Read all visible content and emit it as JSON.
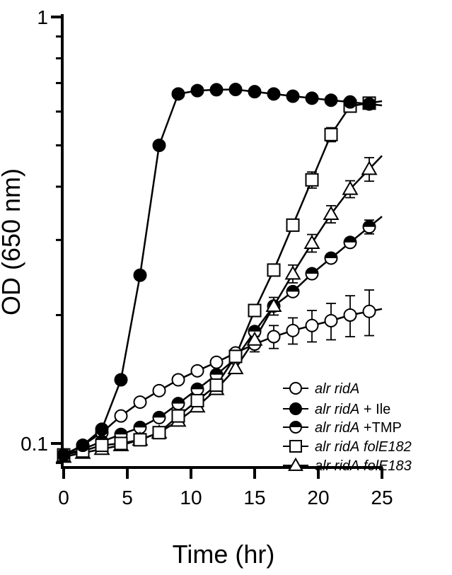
{
  "chart_data": {
    "type": "line",
    "xlabel": "Time (hr)",
    "ylabel": "OD (650 nm)",
    "xlim": [
      0,
      25
    ],
    "ylim": [
      0.08,
      1
    ],
    "y_scale": "log",
    "x_ticks": [
      0,
      5,
      10,
      15,
      20,
      25
    ],
    "x_tick_labels": [
      "0",
      "5",
      "10",
      "15",
      "20",
      "25"
    ],
    "y_ticks": [
      0.1,
      1
    ],
    "y_tick_labels": [
      "0.1",
      "1"
    ],
    "grid": false,
    "legend_position": "bottom-right",
    "series": [
      {
        "name_parts": [
          {
            "text": "alr ridA",
            "italic": true
          }
        ],
        "marker": "circle-open",
        "color": "#000000",
        "x": [
          0,
          1.5,
          3,
          4.5,
          6,
          7.5,
          9,
          10.5,
          12,
          13.5,
          15,
          16.5,
          18,
          19.5,
          21,
          22.5,
          24
        ],
        "y": [
          0.094,
          0.099,
          0.106,
          0.116,
          0.125,
          0.133,
          0.141,
          0.148,
          0.155,
          0.163,
          0.171,
          0.178,
          0.184,
          0.189,
          0.194,
          0.2,
          0.204
        ],
        "err": [
          0,
          0,
          0,
          0,
          0,
          0,
          0,
          0,
          0,
          0,
          0.007,
          0.011,
          0.013,
          0.016,
          0.019,
          0.022,
          0.025
        ]
      },
      {
        "name_parts": [
          {
            "text": "alr ridA",
            "italic": true
          },
          {
            "text": " + Ile",
            "italic": false
          }
        ],
        "marker": "circle-filled",
        "color": "#000000",
        "x": [
          0,
          1.5,
          3,
          4.5,
          6,
          7.5,
          9,
          10.5,
          12,
          13.5,
          15,
          16.5,
          18,
          19.5,
          21,
          22.5,
          24
        ],
        "y": [
          0.094,
          0.099,
          0.108,
          0.141,
          0.248,
          0.5,
          0.66,
          0.672,
          0.675,
          0.676,
          0.668,
          0.66,
          0.652,
          0.645,
          0.638,
          0.632,
          0.625
        ],
        "err": []
      },
      {
        "name_parts": [
          {
            "text": "alr ridA",
            "italic": true
          },
          {
            "text": " +TMP",
            "italic": false
          }
        ],
        "marker": "circle-half",
        "color": "#000000",
        "x": [
          0,
          1.5,
          3,
          4.5,
          6,
          7.5,
          9,
          10.5,
          12,
          13.5,
          15,
          16.5,
          18,
          19.5,
          21,
          22.5,
          24
        ],
        "y": [
          0.094,
          0.097,
          0.101,
          0.105,
          0.109,
          0.115,
          0.124,
          0.134,
          0.145,
          0.158,
          0.183,
          0.21,
          0.227,
          0.25,
          0.272,
          0.296,
          0.322
        ],
        "err": [
          0,
          0,
          0,
          0,
          0,
          0,
          0,
          0,
          0,
          0,
          0,
          0,
          0,
          0,
          0,
          0,
          0.012
        ]
      },
      {
        "name_parts": [
          {
            "text": "alr ridA folE182",
            "italic": true
          }
        ],
        "marker": "square-open",
        "color": "#000000",
        "x": [
          0,
          1.5,
          3,
          4.5,
          6,
          7.5,
          9,
          10.5,
          12,
          13.5,
          15,
          16.5,
          18,
          19.5,
          21,
          22.5,
          24
        ],
        "y": [
          0.094,
          0.096,
          0.099,
          0.1,
          0.102,
          0.106,
          0.116,
          0.126,
          0.137,
          0.16,
          0.205,
          0.255,
          0.325,
          0.415,
          0.53,
          0.618,
          0.628
        ],
        "err": [
          0,
          0,
          0,
          0,
          0,
          0,
          0,
          0,
          0,
          0,
          0,
          0,
          0,
          0.018,
          0.02,
          0.01,
          0.008
        ]
      },
      {
        "name_parts": [
          {
            "text": "alr ridA folE183",
            "italic": true
          }
        ],
        "marker": "triangle-open",
        "color": "#000000",
        "x": [
          0,
          1.5,
          3,
          4.5,
          6,
          7.5,
          9,
          10.5,
          12,
          13.5,
          15,
          16.5,
          18,
          19.5,
          21,
          22.5,
          24
        ],
        "y": [
          0.093,
          0.095,
          0.097,
          0.099,
          0.102,
          0.106,
          0.113,
          0.122,
          0.134,
          0.15,
          0.175,
          0.21,
          0.25,
          0.295,
          0.345,
          0.395,
          0.44
        ],
        "err": [
          0,
          0,
          0,
          0,
          0,
          0,
          0,
          0,
          0,
          0,
          0,
          0.01,
          0.012,
          0.014,
          0.016,
          0.018,
          0.028
        ]
      }
    ]
  }
}
